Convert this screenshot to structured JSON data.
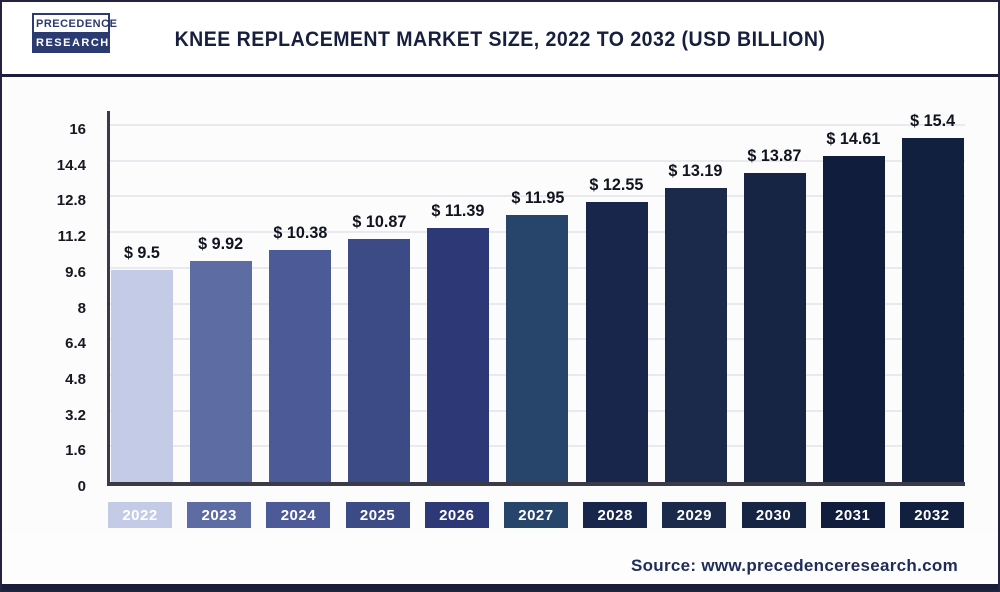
{
  "header": {
    "logo": {
      "line1": "PRECEDENCE",
      "line2": "RESEARCH"
    },
    "title": "KNEE REPLACEMENT MARKET SIZE, 2022 TO 2032 (USD BILLION)"
  },
  "chart_data": {
    "type": "bar",
    "title": "Knee Replacement Market Size, 2022 to 2032 (USD Billion)",
    "categories": [
      "2022",
      "2023",
      "2024",
      "2025",
      "2026",
      "2027",
      "2028",
      "2029",
      "2030",
      "2031",
      "2032"
    ],
    "values": [
      9.5,
      9.92,
      10.38,
      10.87,
      11.39,
      11.95,
      12.55,
      13.19,
      13.87,
      14.61,
      15.4
    ],
    "value_labels": [
      "$ 9.5",
      "$ 9.92",
      "$ 10.38",
      "$ 10.87",
      "$ 11.39",
      "$ 11.95",
      "$ 12.55",
      "$ 13.19",
      "$ 13.87",
      "$ 14.61",
      "$ 15.4"
    ],
    "bar_colors": [
      "#c3cbe7",
      "#5d6ca2",
      "#4c5b97",
      "#3c4a86",
      "#2d3876",
      "#27456b",
      "#17264a",
      "#1b2a4b",
      "#162544",
      "#101d3c",
      "#12203f"
    ],
    "unit": "USD Billion",
    "xlabel": "",
    "ylabel": "",
    "ylim": [
      0,
      16
    ],
    "yticks": [
      0,
      1.6,
      3.2,
      4.8,
      6.4,
      8,
      9.6,
      11.2,
      12.8,
      14.4,
      16
    ],
    "grid": true,
    "legend": false
  },
  "footer": {
    "source": "Source: www.precedenceresearch.com"
  },
  "colors": {
    "title_text": "#161f3e",
    "axis_line": "#3b3b47",
    "gridline": "#e9e9ef",
    "value_label_text": "#10141f",
    "chip_text": "#ffffff",
    "source_text": "#1e2c59",
    "logo_navy": "#2b3a70"
  }
}
